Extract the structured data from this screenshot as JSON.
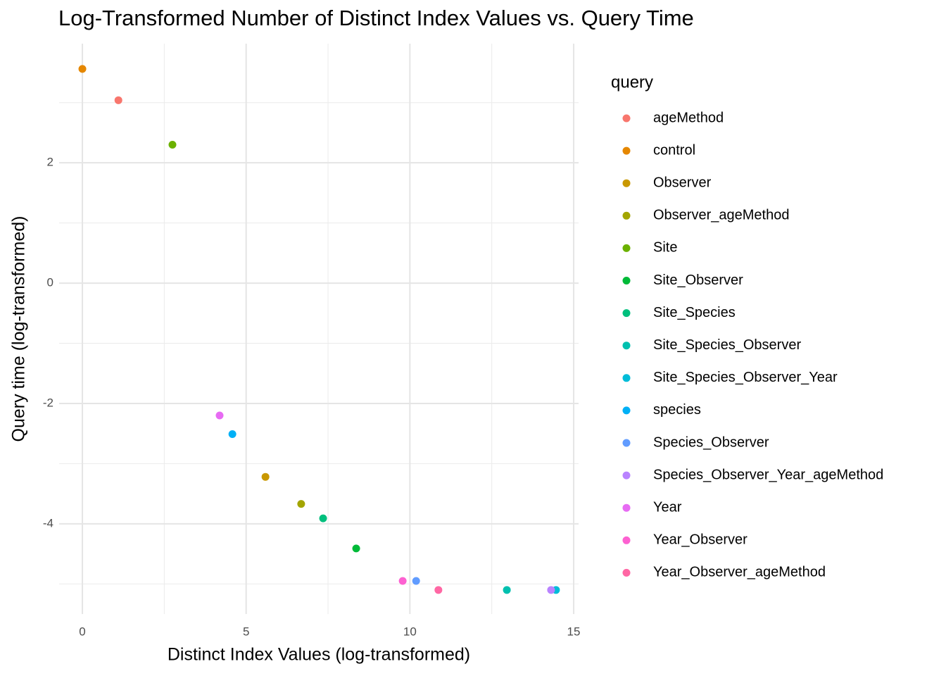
{
  "chart_data": {
    "type": "scatter",
    "title": "Log-Transformed Number of Distinct Index Values vs. Query Time",
    "x_label": "Distinct Index Values (log-transformed)",
    "y_label": "Query time (log-transformed)",
    "legend_title": "query",
    "xlim": [
      -0.71,
      15.15
    ],
    "ylim": [
      -5.5,
      3.98
    ],
    "xticks": [
      0,
      5,
      10,
      15
    ],
    "yticks": [
      -4,
      -2,
      0,
      2
    ],
    "x_minor_grid": [
      2.5,
      7.5,
      12.5
    ],
    "y_minor_grid": [
      -5,
      -3,
      -1,
      1,
      3
    ],
    "grid": true,
    "legend": "right",
    "series": [
      {
        "name": "ageMethod",
        "color": "#F8766D",
        "x": [
          1.1
        ],
        "values": [
          3.04
        ]
      },
      {
        "name": "control",
        "color": "#E58700",
        "x": [
          0
        ],
        "values": [
          3.56
        ]
      },
      {
        "name": "Observer",
        "color": "#C99800",
        "x": [
          5.59
        ],
        "values": [
          -3.22
        ]
      },
      {
        "name": "Observer_ageMethod",
        "color": "#A3A500",
        "x": [
          6.68
        ],
        "values": [
          -3.67
        ]
      },
      {
        "name": "Site",
        "color": "#6BB100",
        "x": [
          2.75
        ],
        "values": [
          2.3
        ]
      },
      {
        "name": "Site_Observer",
        "color": "#00BA38",
        "x": [
          8.36
        ],
        "values": [
          -4.41
        ]
      },
      {
        "name": "Site_Species",
        "color": "#00BF7D",
        "x": [
          7.35
        ],
        "values": [
          -3.91
        ]
      },
      {
        "name": "Site_Species_Observer",
        "color": "#00C0AF",
        "x": [
          12.96
        ],
        "values": [
          -5.1
        ]
      },
      {
        "name": "Site_Species_Observer_Year",
        "color": "#00BCD8",
        "x": [
          14.46
        ],
        "values": [
          -5.1
        ]
      },
      {
        "name": "species",
        "color": "#00B0F6",
        "x": [
          4.58
        ],
        "values": [
          -2.51
        ]
      },
      {
        "name": "Species_Observer",
        "color": "#619CFF",
        "x": [
          10.19
        ],
        "values": [
          -4.95
        ]
      },
      {
        "name": "Species_Observer_Year_ageMethod",
        "color": "#B983FF",
        "x": [
          14.31
        ],
        "values": [
          -5.1
        ]
      },
      {
        "name": "Year",
        "color": "#E76BF3",
        "x": [
          4.19
        ],
        "values": [
          -2.2
        ]
      },
      {
        "name": "Year_Observer",
        "color": "#FD61D1",
        "x": [
          9.78
        ],
        "values": [
          -4.95
        ]
      },
      {
        "name": "Year_Observer_ageMethod",
        "color": "#FF67A4",
        "x": [
          10.87
        ],
        "values": [
          -5.1
        ]
      }
    ]
  }
}
